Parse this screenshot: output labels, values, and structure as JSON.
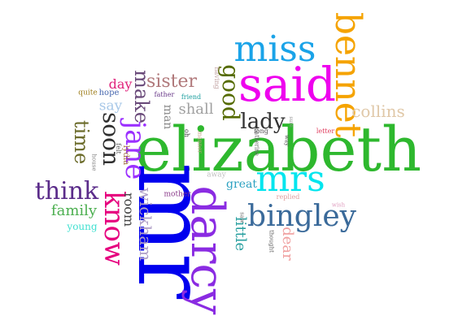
{
  "words": [
    {
      "text": "elizabeth",
      "color": "#2eb82e"
    },
    {
      "text": "mr",
      "color": "#0000ee"
    },
    {
      "text": "said",
      "color": "#ee00ee"
    },
    {
      "text": "darcy",
      "color": "#8a2be2"
    },
    {
      "text": "mrs",
      "color": "#00e5ee"
    },
    {
      "text": "miss",
      "color": "#1aa3e8"
    },
    {
      "text": "bennet",
      "color": "#f5a300"
    },
    {
      "text": "bingley",
      "color": "#3a6a9a"
    },
    {
      "text": "jane",
      "color": "#9b30ff"
    },
    {
      "text": "know",
      "color": "#e6007e"
    },
    {
      "text": "think",
      "color": "#5b2c8a"
    },
    {
      "text": "soon",
      "color": "#2f2f2f"
    },
    {
      "text": "good",
      "color": "#556b00"
    },
    {
      "text": "lady",
      "color": "#333333"
    },
    {
      "text": "sister",
      "color": "#b0787a"
    },
    {
      "text": "make",
      "color": "#6a4a7a"
    },
    {
      "text": "time",
      "color": "#6b6b2a"
    },
    {
      "text": "wickham",
      "color": "#b0a0c8"
    },
    {
      "text": "family",
      "color": "#4caf50"
    },
    {
      "text": "collins",
      "color": "#e0c8a8"
    },
    {
      "text": "little",
      "color": "#2aa0a0"
    },
    {
      "text": "dear",
      "color": "#f0a0a0"
    },
    {
      "text": "shall",
      "color": "#a0a0a0"
    },
    {
      "text": "say",
      "color": "#a8c8e8"
    },
    {
      "text": "day",
      "color": "#e0207a"
    },
    {
      "text": "room",
      "color": "#444444"
    },
    {
      "text": "great",
      "color": "#2aa0c0"
    },
    {
      "text": "man",
      "color": "#888888"
    },
    {
      "text": "young",
      "color": "#40e0d0"
    },
    {
      "text": "hope",
      "color": "#4a6ab0"
    },
    {
      "text": "quite",
      "color": "#a08020"
    },
    {
      "text": "father",
      "color": "#6a3a8a"
    },
    {
      "text": "friend",
      "color": "#20a0a0"
    },
    {
      "text": "having",
      "color": "#c0a0a0"
    },
    {
      "text": "manner",
      "color": "#c0a080"
    },
    {
      "text": "long",
      "color": "#555555"
    },
    {
      "text": "letter",
      "color": "#e04060"
    },
    {
      "text": "away",
      "color": "#c0c0c0"
    },
    {
      "text": "mother",
      "color": "#8a3a8a"
    },
    {
      "text": "replied",
      "color": "#e0a0a0"
    },
    {
      "text": "wish",
      "color": "#e0a0c0"
    },
    {
      "text": "lydia",
      "color": "#a07040"
    },
    {
      "text": "felt",
      "color": "#606060"
    },
    {
      "text": "house",
      "color": "#808080"
    },
    {
      "text": "catherine",
      "color": "#606060"
    },
    {
      "text": "way",
      "color": "#505050"
    },
    {
      "text": "sure",
      "color": "#909090"
    },
    {
      "text": "saw",
      "color": "#707070"
    },
    {
      "text": "thought",
      "color": "#606060"
    },
    {
      "text": "oh",
      "color": "#404040"
    }
  ]
}
